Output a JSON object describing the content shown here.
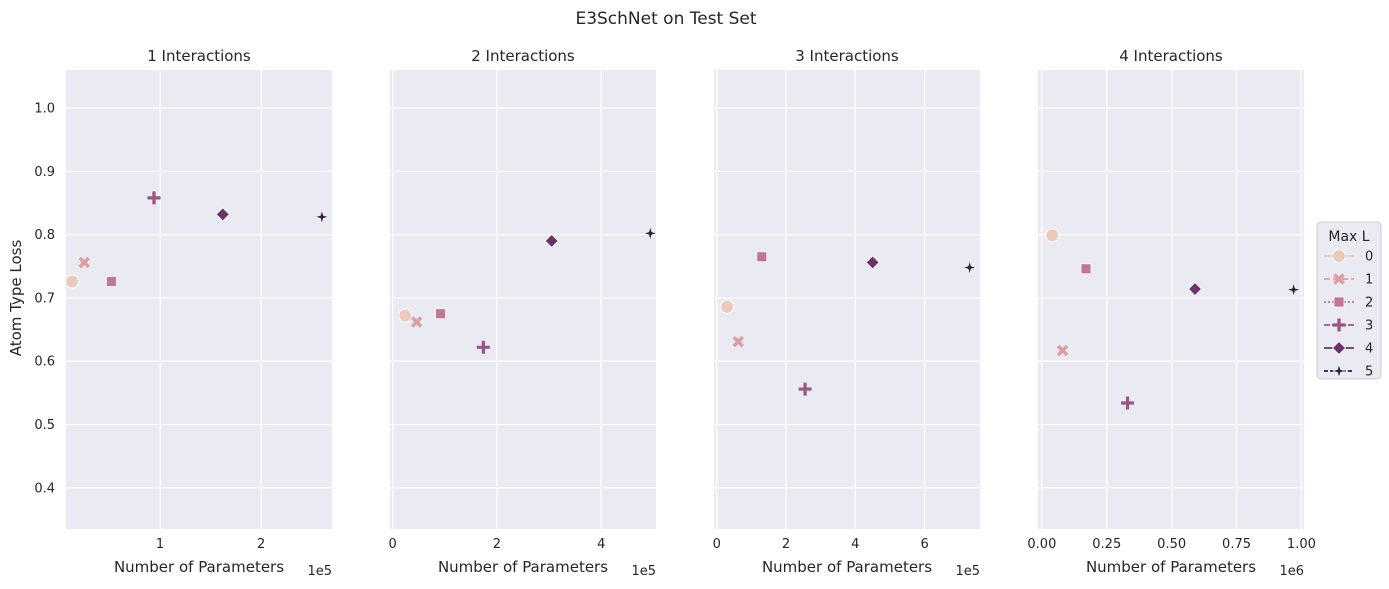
{
  "chart_data": {
    "type": "scatter",
    "title": "E3SchNet on Test Set",
    "ylabel": "Atom Type Loss",
    "ylim": [
      0.335,
      1.06
    ],
    "yticks": [
      0.4,
      0.5,
      0.6,
      0.7,
      0.8,
      0.9,
      1.0
    ],
    "ytick_labels": [
      "0.4",
      "0.5",
      "0.6",
      "0.7",
      "0.8",
      "0.9",
      "1.0"
    ],
    "grid": true,
    "legend": {
      "title": "Max L",
      "placement": "right",
      "entries": [
        {
          "label": "0",
          "color": "#ebcabd",
          "marker": "circle",
          "dash": ""
        },
        {
          "label": "1",
          "color": "#dc9ea4",
          "marker": "x",
          "dash": "6,3"
        },
        {
          "label": "2",
          "color": "#c07694",
          "marker": "square",
          "dash": "2,2"
        },
        {
          "label": "3",
          "color": "#9b5585",
          "marker": "plus",
          "dash": "6,2,2,2"
        },
        {
          "label": "4",
          "color": "#6b3366",
          "marker": "diamond",
          "dash": ""
        },
        {
          "label": "5",
          "color": "#2d1e3e",
          "marker": "star",
          "dash": "4,2"
        }
      ]
    },
    "panels": [
      {
        "title": "1 Interactions",
        "xlabel": "Number of Parameters",
        "offset_label": "1e5",
        "xlim": [
          0.07,
          2.7
        ],
        "xticks": [
          1,
          2
        ],
        "xtick_labels": [
          "1",
          "2"
        ],
        "points": [
          {
            "max_l": "0",
            "x": 0.13,
            "y": 0.726
          },
          {
            "max_l": "1",
            "x": 0.25,
            "y": 0.756
          },
          {
            "max_l": "2",
            "x": 0.52,
            "y": 0.726
          },
          {
            "max_l": "3",
            "x": 0.94,
            "y": 0.858
          },
          {
            "max_l": "4",
            "x": 1.62,
            "y": 0.832
          },
          {
            "max_l": "5",
            "x": 2.6,
            "y": 0.828
          }
        ]
      },
      {
        "title": "2 Interactions",
        "xlabel": "Number of Parameters",
        "offset_label": "1e5",
        "xlim": [
          -0.05,
          5.05
        ],
        "xticks": [
          0,
          2,
          4
        ],
        "xtick_labels": [
          "0",
          "2",
          "4"
        ],
        "points": [
          {
            "max_l": "0",
            "x": 0.24,
            "y": 0.672
          },
          {
            "max_l": "1",
            "x": 0.46,
            "y": 0.662
          },
          {
            "max_l": "2",
            "x": 0.92,
            "y": 0.675
          },
          {
            "max_l": "3",
            "x": 1.74,
            "y": 0.622
          },
          {
            "max_l": "4",
            "x": 3.05,
            "y": 0.79
          },
          {
            "max_l": "5",
            "x": 4.94,
            "y": 0.802
          }
        ]
      },
      {
        "title": "3 Interactions",
        "xlabel": "Number of Parameters",
        "offset_label": "1e5",
        "xlim": [
          -0.08,
          7.6
        ],
        "xticks": [
          0,
          2,
          4,
          6
        ],
        "xtick_labels": [
          "0",
          "2",
          "4",
          "6"
        ],
        "points": [
          {
            "max_l": "0",
            "x": 0.3,
            "y": 0.686
          },
          {
            "max_l": "1",
            "x": 0.62,
            "y": 0.631
          },
          {
            "max_l": "2",
            "x": 1.3,
            "y": 0.765
          },
          {
            "max_l": "3",
            "x": 2.55,
            "y": 0.556
          },
          {
            "max_l": "4",
            "x": 4.5,
            "y": 0.756
          },
          {
            "max_l": "5",
            "x": 7.3,
            "y": 0.748
          }
        ]
      },
      {
        "title": "4 Interactions",
        "xlabel": "Number of Parameters",
        "offset_label": "1e6",
        "xlim": [
          -0.015,
          1.01
        ],
        "xticks": [
          0,
          0.25,
          0.5,
          0.75,
          1.0
        ],
        "xtick_labels": [
          "0.00",
          "0.25",
          "0.50",
          "0.75",
          "1.00"
        ],
        "points": [
          {
            "max_l": "0",
            "x": 0.04,
            "y": 0.799
          },
          {
            "max_l": "1",
            "x": 0.08,
            "y": 0.617
          },
          {
            "max_l": "2",
            "x": 0.17,
            "y": 0.746
          },
          {
            "max_l": "3",
            "x": 0.33,
            "y": 0.534
          },
          {
            "max_l": "4",
            "x": 0.59,
            "y": 0.714
          },
          {
            "max_l": "5",
            "x": 0.97,
            "y": 0.713
          }
        ]
      }
    ]
  }
}
